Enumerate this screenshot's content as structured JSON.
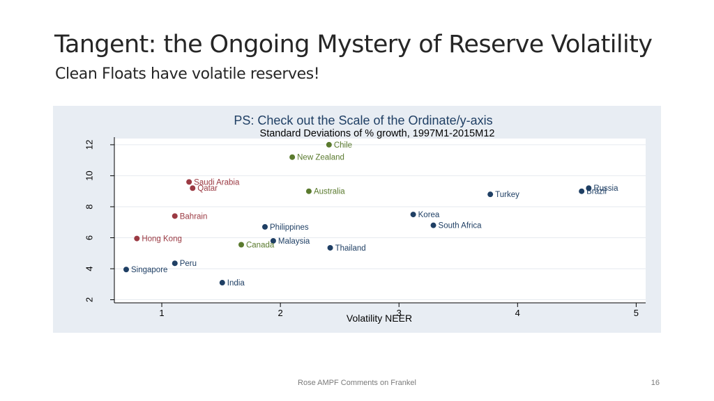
{
  "slide": {
    "title": "Tangent: the Ongoing Mystery of Reserve Volatility",
    "subtitle": "Clean Floats have volatile reserves!",
    "footer": "Rose AMPF Comments on Frankel",
    "page_number": "16"
  },
  "chart_data": {
    "type": "scatter",
    "title": "PS: Check out the Scale of the Ordinate/y-axis",
    "subtitle": "Standard Deviations of % growth, 1997M1-2015M12",
    "xlabel": "Volatility NEER",
    "ylabel": "",
    "xlim": [
      0.6,
      5.08
    ],
    "ylim": [
      1.8,
      12.4
    ],
    "x_ticks": [
      1,
      2,
      3,
      4,
      5
    ],
    "y_ticks": [
      2,
      4,
      6,
      8,
      10,
      12
    ],
    "grid": "horizontal",
    "legend": "none",
    "colors": {
      "green": "#5a7a2e",
      "red": "#9b3a43",
      "navy": "#1f3f64",
      "title": "#1f3f64",
      "axis": "#000000",
      "grid": "#e6eaef",
      "plot_bg": "#ffffff"
    },
    "points": [
      {
        "label": "Chile",
        "x": 2.41,
        "y": 12.0,
        "color": "green",
        "anchor": "right"
      },
      {
        "label": "New Zealand",
        "x": 2.1,
        "y": 11.2,
        "color": "green",
        "anchor": "right"
      },
      {
        "label": "Saudi Arabia",
        "x": 1.23,
        "y": 9.6,
        "color": "red",
        "anchor": "right"
      },
      {
        "label": "Qatar",
        "x": 1.26,
        "y": 9.2,
        "color": "red",
        "anchor": "right"
      },
      {
        "label": "Australia",
        "x": 2.24,
        "y": 9.0,
        "color": "green",
        "anchor": "right"
      },
      {
        "label": "Turkey",
        "x": 3.77,
        "y": 8.8,
        "color": "navy",
        "anchor": "right"
      },
      {
        "label": "Russia",
        "x": 4.6,
        "y": 9.2,
        "color": "navy",
        "anchor": "right"
      },
      {
        "label": "Brazil",
        "x": 4.54,
        "y": 9.0,
        "color": "navy",
        "anchor": "right"
      },
      {
        "label": "Bahrain",
        "x": 1.11,
        "y": 7.4,
        "color": "red",
        "anchor": "right"
      },
      {
        "label": "Korea",
        "x": 3.12,
        "y": 7.5,
        "color": "navy",
        "anchor": "right"
      },
      {
        "label": "South Africa",
        "x": 3.29,
        "y": 6.8,
        "color": "navy",
        "anchor": "right"
      },
      {
        "label": "Philippines",
        "x": 1.87,
        "y": 6.7,
        "color": "navy",
        "anchor": "right"
      },
      {
        "label": "Hong Kong",
        "x": 0.79,
        "y": 5.95,
        "color": "red",
        "anchor": "right"
      },
      {
        "label": "Malaysia",
        "x": 1.94,
        "y": 5.8,
        "color": "navy",
        "anchor": "right"
      },
      {
        "label": "Canada",
        "x": 1.67,
        "y": 5.55,
        "color": "green",
        "anchor": "right"
      },
      {
        "label": "Thailand",
        "x": 2.42,
        "y": 5.35,
        "color": "navy",
        "anchor": "right"
      },
      {
        "label": "Peru",
        "x": 1.11,
        "y": 4.35,
        "color": "navy",
        "anchor": "right"
      },
      {
        "label": "Singapore",
        "x": 0.7,
        "y": 3.95,
        "color": "navy",
        "anchor": "right"
      },
      {
        "label": "India",
        "x": 1.51,
        "y": 3.1,
        "color": "navy",
        "anchor": "right"
      }
    ]
  }
}
